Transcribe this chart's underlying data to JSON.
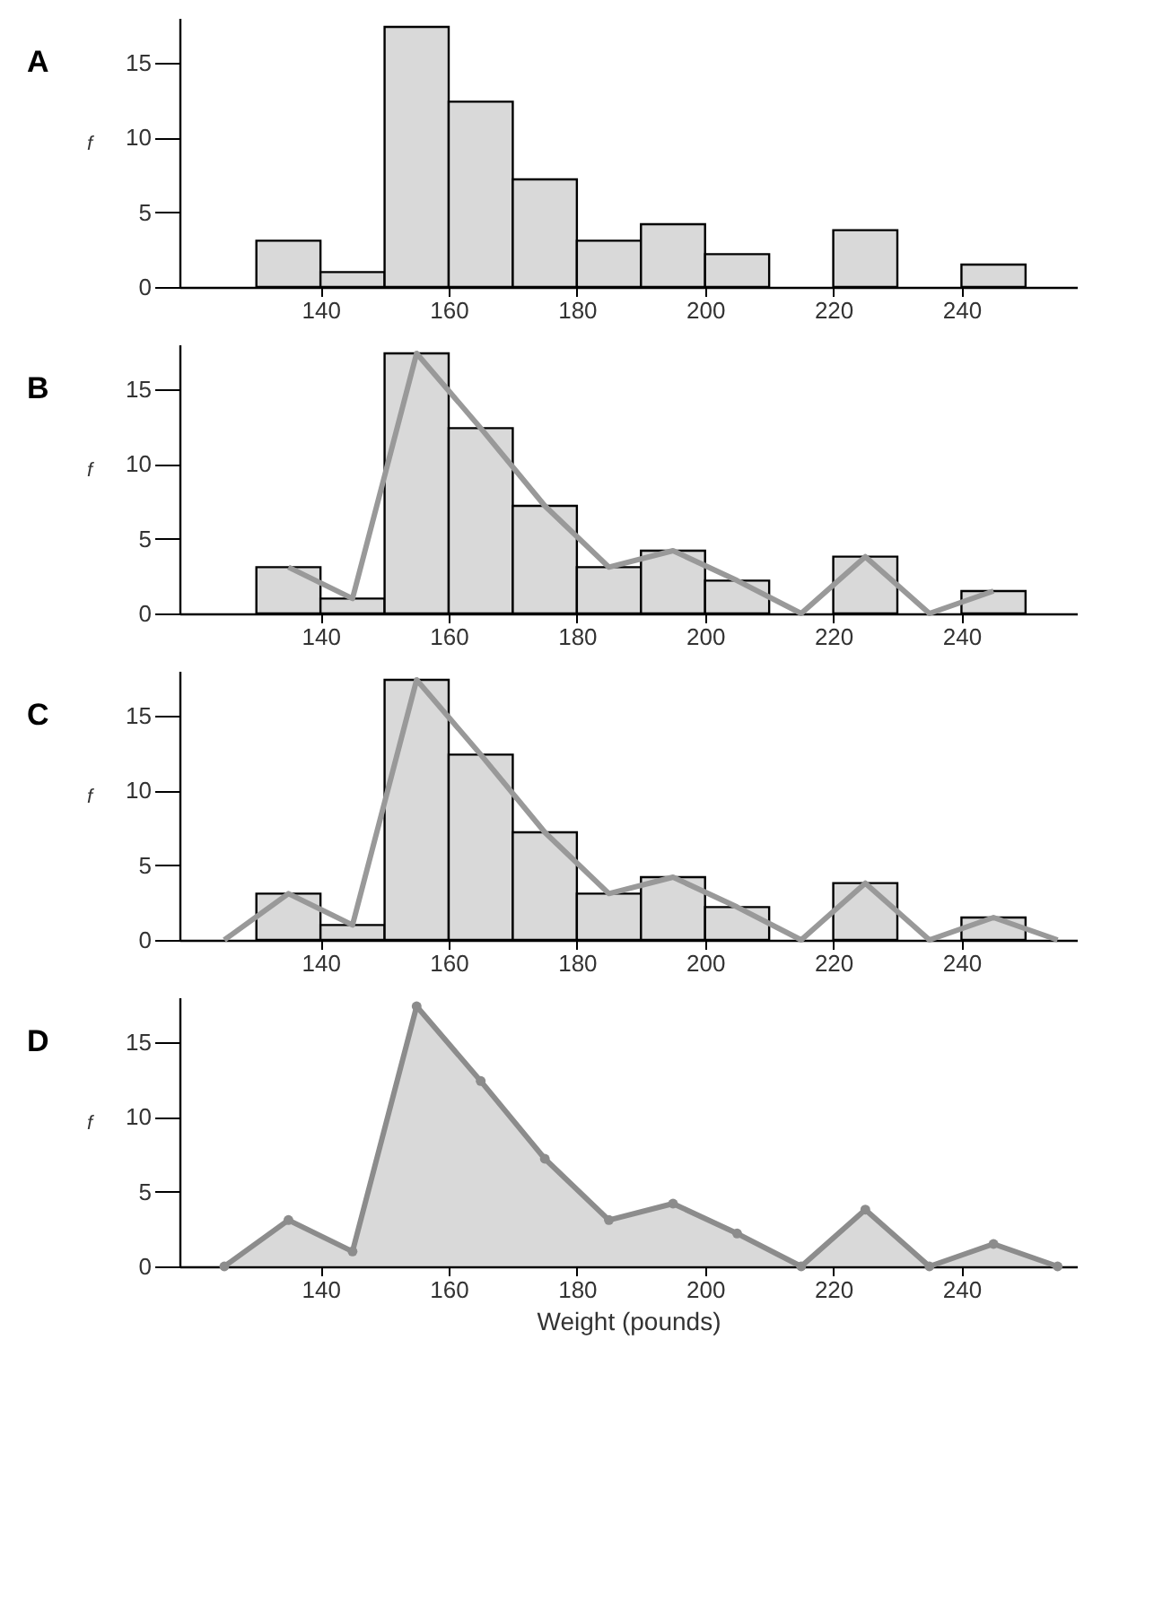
{
  "chart_data": [
    {
      "type": "histogram",
      "title": "A",
      "ylabel": "f",
      "bins": [
        130,
        140,
        150,
        160,
        170,
        180,
        190,
        200,
        210,
        220,
        230,
        240,
        250
      ],
      "values": [
        3.1,
        1,
        17.4,
        12.4,
        7.2,
        3.1,
        4.2,
        2.2,
        0,
        3.8,
        0,
        1.5
      ],
      "color": "#d9d9d9",
      "xlim": [
        118,
        258
      ],
      "xticks": [
        140,
        160,
        180,
        200,
        220,
        240
      ],
      "ylim": [
        0,
        18
      ],
      "yticks": [
        0,
        5,
        10,
        15
      ],
      "grid": false
    },
    {
      "type": "histogram",
      "title": "B",
      "ylabel": "f",
      "bins": [
        130,
        140,
        150,
        160,
        170,
        180,
        190,
        200,
        210,
        220,
        230,
        240,
        250
      ],
      "values": [
        3.1,
        1,
        17.4,
        12.4,
        7.2,
        3.1,
        4.2,
        2.2,
        0,
        3.8,
        0,
        1.5
      ],
      "color": "#d9d9d9",
      "xlim": [
        118,
        258
      ],
      "xticks": [
        140,
        160,
        180,
        200,
        220,
        240
      ],
      "ylim": [
        0,
        18
      ],
      "yticks": [
        0,
        5,
        10,
        15
      ],
      "grid": false,
      "series": [
        {
          "type": "line",
          "color": "#999999",
          "x": [
            135,
            145,
            155,
            165,
            175,
            185,
            195,
            205,
            215,
            225,
            235,
            245
          ],
          "values": [
            3.1,
            1,
            17.4,
            12.4,
            7.2,
            3.1,
            4.2,
            2.2,
            0,
            3.8,
            0,
            1.5
          ]
        }
      ]
    },
    {
      "type": "histogram",
      "title": "C",
      "ylabel": "f",
      "bins": [
        130,
        140,
        150,
        160,
        170,
        180,
        190,
        200,
        210,
        220,
        230,
        240,
        250
      ],
      "values": [
        3.1,
        1,
        17.4,
        12.4,
        7.2,
        3.1,
        4.2,
        2.2,
        0,
        3.8,
        0,
        1.5
      ],
      "color": "#d9d9d9",
      "xlim": [
        118,
        258
      ],
      "xticks": [
        140,
        160,
        180,
        200,
        220,
        240
      ],
      "ylim": [
        0,
        18
      ],
      "yticks": [
        0,
        5,
        10,
        15
      ],
      "grid": false,
      "series": [
        {
          "type": "line",
          "color": "#999999",
          "x": [
            125,
            135,
            145,
            155,
            165,
            175,
            185,
            195,
            205,
            215,
            225,
            235,
            245,
            255
          ],
          "values": [
            0,
            3.1,
            1,
            17.4,
            12.4,
            7.2,
            3.1,
            4.2,
            2.2,
            0,
            3.8,
            0,
            1.5,
            0
          ]
        }
      ]
    },
    {
      "type": "area",
      "title": "D",
      "ylabel": "f",
      "xlabel": "Weight (pounds)",
      "marker": "circle",
      "xlim": [
        118,
        258
      ],
      "xticks": [
        140,
        160,
        180,
        200,
        220,
        240
      ],
      "ylim": [
        0,
        18
      ],
      "yticks": [
        0,
        5,
        10,
        15
      ],
      "grid": false,
      "series": [
        {
          "type": "area",
          "color": "#8c8c8c",
          "x": [
            125,
            135,
            145,
            155,
            165,
            175,
            185,
            195,
            205,
            215,
            225,
            235,
            245,
            255
          ],
          "values": [
            0,
            3.1,
            1,
            17.4,
            12.4,
            7.2,
            3.1,
            4.2,
            2.2,
            0,
            3.8,
            0,
            1.5,
            0
          ]
        }
      ]
    }
  ]
}
